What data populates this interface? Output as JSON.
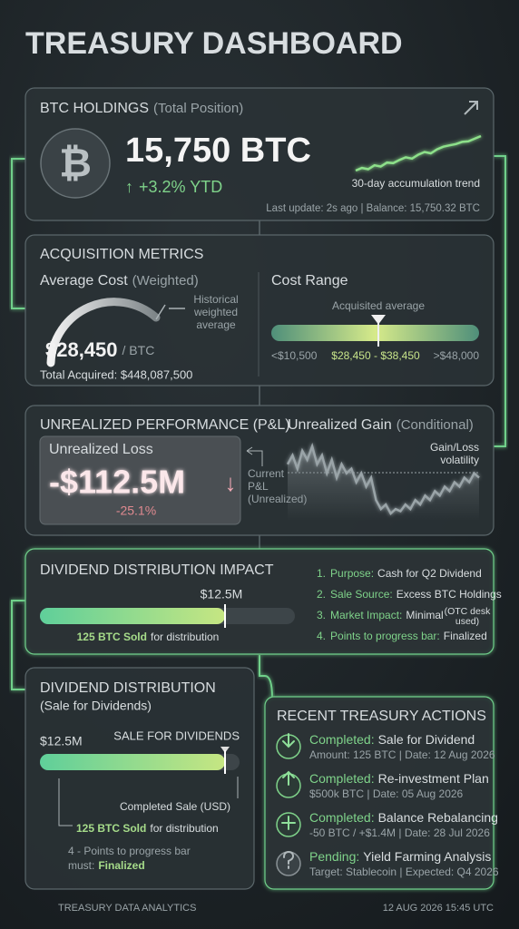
{
  "header": {
    "title": "TREASURY DASHBOARD"
  },
  "holdings": {
    "title": "BTC HOLDINGS",
    "subtitle": "(Total Position)",
    "icon": "₿",
    "amount": "15,750 BTC",
    "change_arrow": "↑",
    "change": "+3.2% YTD",
    "trend_label": "30-day accumulation trend",
    "trend_values": [
      2,
      3,
      2.5,
      4,
      3.5,
      5,
      4.8,
      6,
      7,
      6.5,
      8,
      9,
      8.5,
      10,
      11,
      11.5,
      12,
      12.8,
      13,
      14,
      15
    ],
    "footer": "Last update: 2s ago | Balance: 15,750.32 BTC"
  },
  "acquisition": {
    "title": "ACQUISITION METRICS",
    "avg_label": "Average Cost",
    "avg_note": "(Weighted)",
    "gauge_note": [
      "Historical",
      "weighted",
      "average"
    ],
    "avg_value": "$28,450",
    "avg_unit": "/ BTC",
    "total": "Total Acquired: $448,087,500",
    "range_title": "Cost Range",
    "range_marker": "Acquisited average",
    "range_low": "<$10,500",
    "range_mid": "$28,450 - $38,450",
    "range_high": ">$48,000"
  },
  "pnl": {
    "title": "UNREALIZED PERFORMANCE (P&L)",
    "loss_label": "Unrealized Loss",
    "loss_value": "-$112.5M",
    "loss_arrow": "↓",
    "loss_pct": "-25.1%",
    "current_note": [
      "Current",
      "P&L",
      "(Unrealized)"
    ],
    "gain_title": "Unrealized Gain",
    "gain_note": "(Conditional)",
    "volatility_label": [
      "Gain/Loss",
      "volatility"
    ],
    "volatility_values": [
      12,
      14,
      11,
      15,
      13,
      16,
      12,
      14,
      10,
      13,
      9,
      12,
      10,
      11,
      8,
      10,
      7,
      9,
      4,
      2,
      3,
      1,
      2,
      1.5,
      3,
      2,
      4,
      3,
      5,
      4,
      6,
      5,
      7,
      6,
      8,
      7,
      9,
      8,
      10,
      9
    ]
  },
  "dividend_impact": {
    "title": "DIVIDEND DISTRIBUTION IMPACT",
    "bar_value": "$12.5M",
    "sold": "125 BTC Sold",
    "sold_suffix": "for distribution",
    "points": [
      {
        "n": "1.",
        "label": "Purpose:",
        "text": "Cash for Q2 Dividend"
      },
      {
        "n": "2.",
        "label": "Sale Source:",
        "text": "Excess BTC Holdings"
      },
      {
        "n": "3.",
        "label": "Market Impact:",
        "text": "Minimal",
        "note": [
          "(OTC desk",
          "used)"
        ]
      },
      {
        "n": "4.",
        "label": "Points to progress bar:",
        "text": "Finalized"
      }
    ]
  },
  "dividend_sale": {
    "title": "DIVIDEND DISTRIBUTION",
    "subtitle": "(Sale for Dividends)",
    "bar_value": "$12.5M",
    "bar_tag": "SALE FOR DIVIDENDS",
    "completed": "Completed Sale (USD)",
    "sold": "125 BTC Sold",
    "sold_suffix": "for distribution",
    "note_line1": "4 - Points to progress bar",
    "note_prefix": "must:",
    "note_status": "Finalized"
  },
  "actions": {
    "title": "RECENT TREASURY ACTIONS",
    "items": [
      {
        "status": "Completed:",
        "name": "Sale for Dividend",
        "detail": "Amount: 125 BTC | Date: 12 Aug 2026"
      },
      {
        "status": "Completed:",
        "name": "Re-investment Plan",
        "detail": "$500k BTC | Date: 05 Aug 2026"
      },
      {
        "status": "Completed:",
        "name": "Balance Rebalancing",
        "detail": "-50 BTC / +$1.4M | Date: 28 Jul 2026"
      },
      {
        "status": "Pending:",
        "name": "Yield Farming Analysis",
        "detail": "Target: Stablecoin | Expected: Q4 2026"
      }
    ]
  },
  "footer": {
    "left": "TREASURY DATA ANALYTICS",
    "right": "12 AUG 2026 15:45 UTC"
  }
}
